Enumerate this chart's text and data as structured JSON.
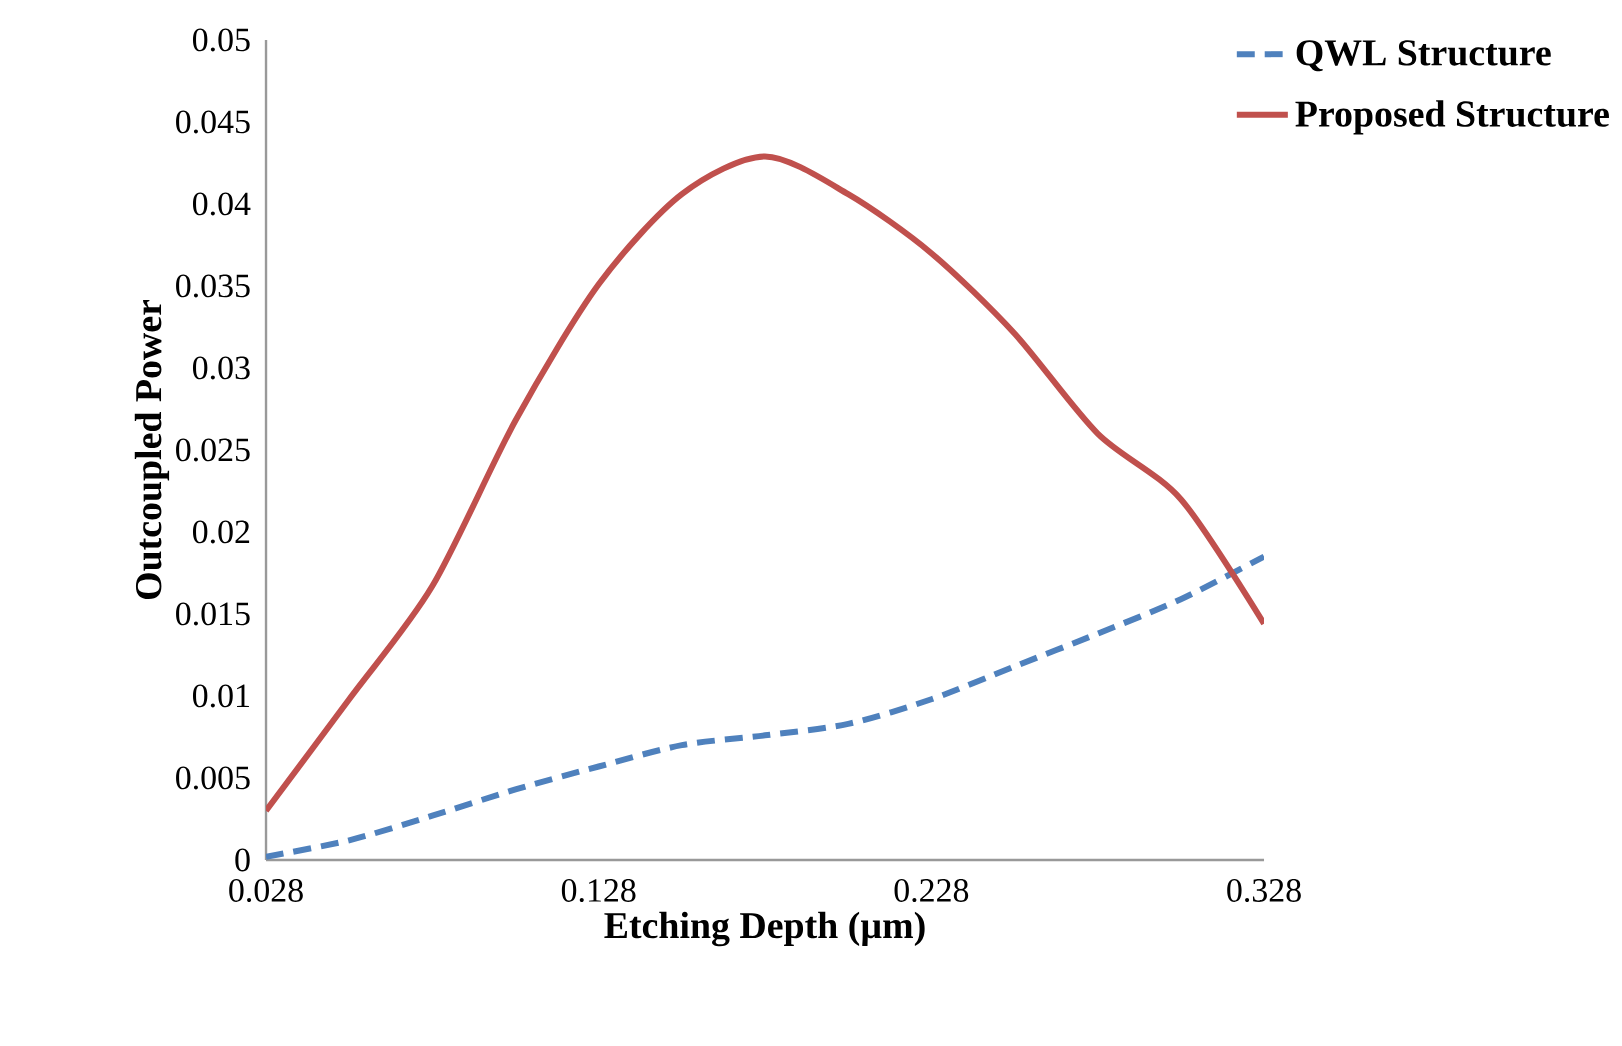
{
  "chart_data": {
    "type": "line",
    "xlabel": "Etching Depth (µm)",
    "ylabel": "Outcoupled Power",
    "x": [
      0.028,
      0.053,
      0.078,
      0.103,
      0.128,
      0.153,
      0.178,
      0.203,
      0.228,
      0.253,
      0.278,
      0.303,
      0.328
    ],
    "series": [
      {
        "name": "QWL Structure",
        "color": "#4f81bd",
        "line_style": "dashed",
        "values": [
          0.0002,
          0.0012,
          0.0027,
          0.0043,
          0.0057,
          0.007,
          0.0076,
          0.0083,
          0.0098,
          0.0118,
          0.0138,
          0.0159,
          0.0185
        ]
      },
      {
        "name": "Proposed Structure",
        "color": "#c0504d",
        "line_style": "solid",
        "values": [
          0.003,
          0.0098,
          0.0167,
          0.0268,
          0.0351,
          0.0406,
          0.0429,
          0.0406,
          0.037,
          0.0321,
          0.026,
          0.022,
          0.0144
        ]
      }
    ],
    "xlim": [
      0.028,
      0.328
    ],
    "xticks": [
      0.028,
      0.128,
      0.228,
      0.328
    ],
    "ylim": [
      0,
      0.05
    ],
    "yticks": [
      0,
      0.005,
      0.01,
      0.015,
      0.02,
      0.025,
      0.03,
      0.035,
      0.04,
      0.045,
      0.05
    ],
    "grid": false,
    "legend": "top right",
    "marker": "none"
  }
}
